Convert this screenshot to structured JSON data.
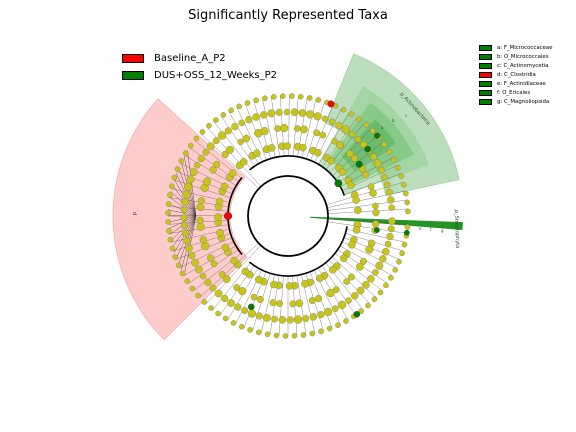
{
  "title": "Significantly Represented Taxa",
  "legend": [
    {
      "label": "Baseline_A_P2",
      "color": "#ff0000"
    },
    {
      "label": "DUS+OSS_12_Weeks_P2",
      "color": "#008000"
    }
  ],
  "taxa_key": [
    {
      "label": "a: F_Micrococcaceae",
      "color": "#008000"
    },
    {
      "label": "b: O_Micrococcales",
      "color": "#008000"
    },
    {
      "label": "c: C_Actinomycetia",
      "color": "#008000"
    },
    {
      "label": "d: C_Clostridia",
      "color": "#ff0000"
    },
    {
      "label": "e: F_Actinidiaceae",
      "color": "#008000"
    },
    {
      "label": "f: O_Ericales",
      "color": "#008000"
    },
    {
      "label": "g: C_Magnoliopsida",
      "color": "#008000"
    }
  ],
  "clade_labels": {
    "actinobacteria": "p_Actinobacteria",
    "streptophyta": "p_Streptophyta",
    "firmicutes": "d",
    "inner_c": "c",
    "inner_b": "b",
    "inner_a": "a",
    "inner_e": "e",
    "inner_f": "f",
    "inner_g": "g"
  },
  "colors": {
    "node": "#c8c418",
    "baseline": "#ff0000",
    "treatment": "#008000",
    "baseline_shade": "#ffcccc",
    "treatment_shade": "#b5dab5"
  }
}
